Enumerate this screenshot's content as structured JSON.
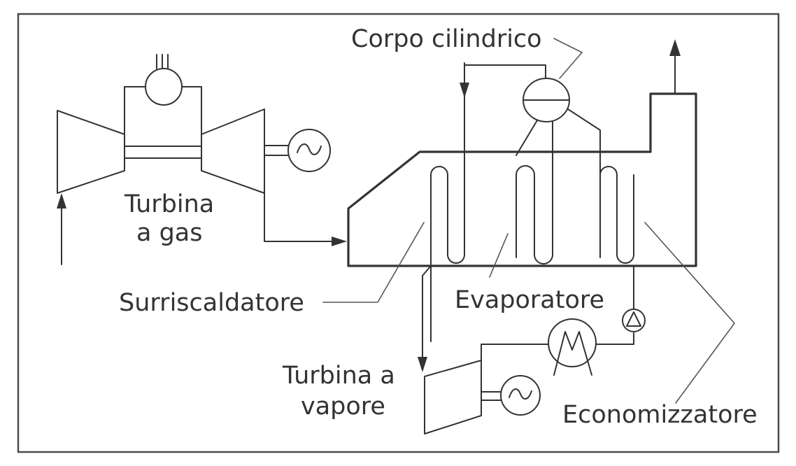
{
  "labels": {
    "gas_turbine_line1": "Turbina",
    "gas_turbine_line2": "a gas",
    "drum": "Corpo cilindrico",
    "superheater": "Surriscaldatore",
    "evaporator": "Evaporatore",
    "steam_turbine_line1": "Turbina a",
    "steam_turbine_line2": "vapore",
    "economizer": "Economizzatore"
  },
  "colors": {
    "line": "#333333",
    "text": "#333333",
    "background": "#ffffff"
  }
}
